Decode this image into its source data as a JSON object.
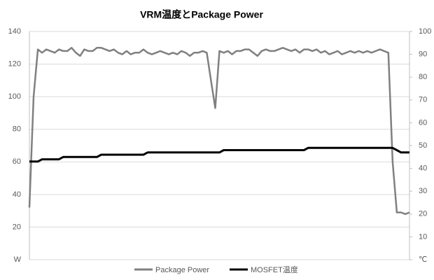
{
  "chart_data": {
    "type": "line",
    "title": "VRM温度とPackage Power",
    "ylim": [
      0,
      140
    ],
    "yticks": [
      {
        "value": 0,
        "label": "W"
      },
      20,
      40,
      60,
      80,
      100,
      120,
      140
    ],
    "y2lim": [
      0,
      100
    ],
    "y2ticks": [
      {
        "value": 0,
        "label": "℃"
      },
      10,
      20,
      30,
      40,
      50,
      60,
      70,
      80,
      90,
      100
    ],
    "grid": true,
    "legend": "bottom",
    "series": [
      {
        "name": "Package Power",
        "color": "#808080",
        "values": [
          32,
          100,
          129,
          127,
          129,
          128,
          127,
          129,
          128,
          128,
          130,
          127,
          125,
          129,
          128,
          128,
          130,
          130,
          129,
          128,
          129,
          127,
          126,
          128,
          126,
          127,
          127,
          129,
          127,
          126,
          127,
          128,
          127,
          126,
          127,
          126,
          128,
          127,
          125,
          127,
          127,
          128,
          127,
          110,
          93,
          128,
          127,
          128,
          126,
          128,
          128,
          129,
          129,
          127,
          125,
          128,
          129,
          128,
          128,
          129,
          130,
          129,
          128,
          129,
          127,
          129,
          129,
          128,
          129,
          127,
          128,
          126,
          127,
          128,
          126,
          127,
          128,
          127,
          128,
          127,
          128,
          127,
          128,
          129,
          128,
          127,
          60,
          29,
          29,
          28,
          29
        ]
      },
      {
        "name": "MOSFET温度",
        "color": "#000000",
        "axis": "y2",
        "values": [
          43,
          43,
          43,
          44,
          44,
          44,
          44,
          44,
          45,
          45,
          45,
          45,
          45,
          45,
          45,
          45,
          45,
          46,
          46,
          46,
          46,
          46,
          46,
          46,
          46,
          46,
          46,
          46,
          47,
          47,
          47,
          47,
          47,
          47,
          47,
          47,
          47,
          47,
          47,
          47,
          47,
          47,
          47,
          47,
          47,
          47,
          48,
          48,
          48,
          48,
          48,
          48,
          48,
          48,
          48,
          48,
          48,
          48,
          48,
          48,
          48,
          48,
          48,
          48,
          48,
          48,
          49,
          49,
          49,
          49,
          49,
          49,
          49,
          49,
          49,
          49,
          49,
          49,
          49,
          49,
          49,
          49,
          49,
          49,
          49,
          49,
          49,
          48,
          47,
          47,
          47
        ]
      }
    ]
  }
}
